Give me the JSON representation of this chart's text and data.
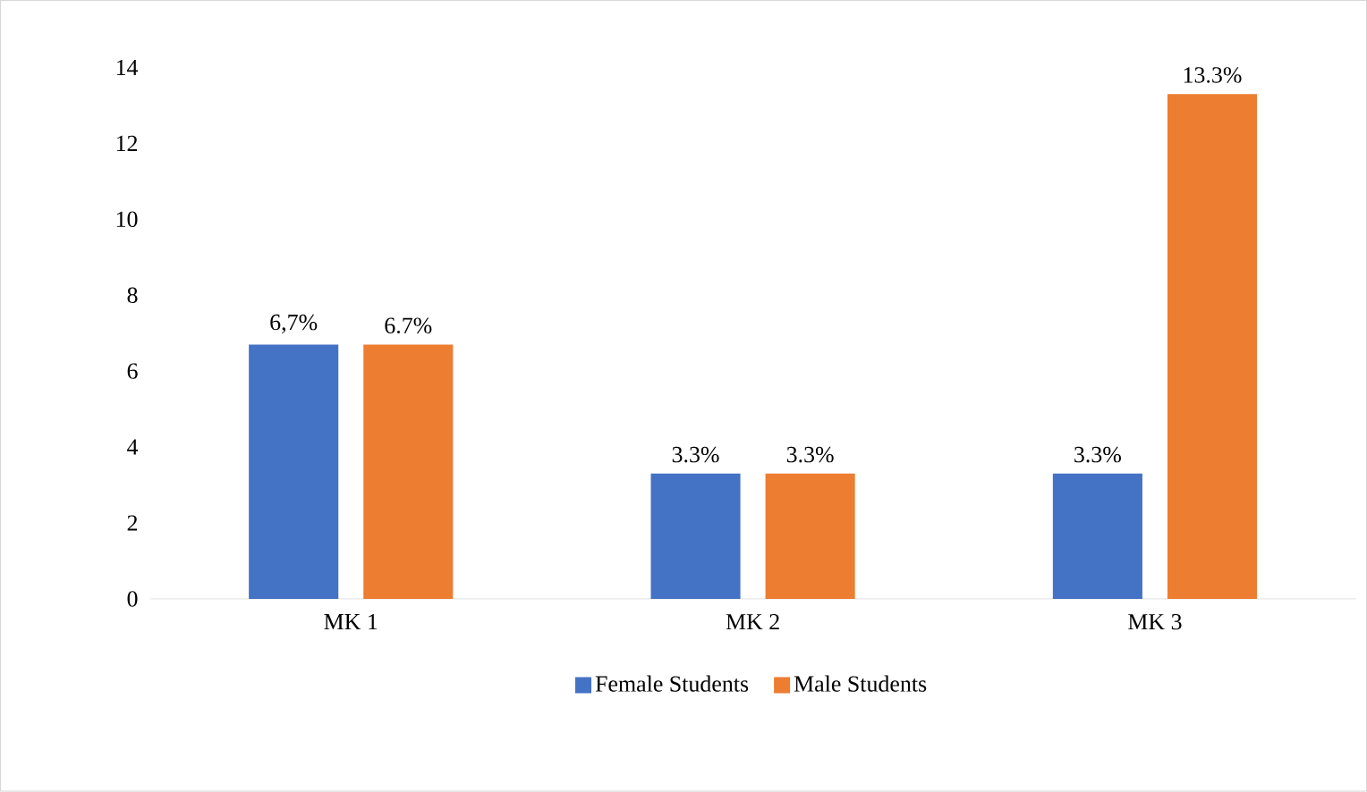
{
  "chart_data": {
    "type": "bar",
    "categories": [
      "MK 1",
      "MK 2",
      "MK 3"
    ],
    "series": [
      {
        "name": "Female Students",
        "color": "#4472c4",
        "values": [
          6.7,
          3.3,
          3.3
        ],
        "value_labels": [
          "6,7%",
          "3.3%",
          "3.3%"
        ]
      },
      {
        "name": "Male Students",
        "color": "#ed7d31",
        "values": [
          6.7,
          3.3,
          13.3
        ],
        "value_labels": [
          "6.7%",
          "3.3%",
          "13.3%"
        ]
      }
    ],
    "ylim": [
      0,
      14
    ],
    "yticks": [
      0,
      2,
      4,
      6,
      8,
      10,
      12,
      14
    ],
    "legend": "bottom"
  }
}
